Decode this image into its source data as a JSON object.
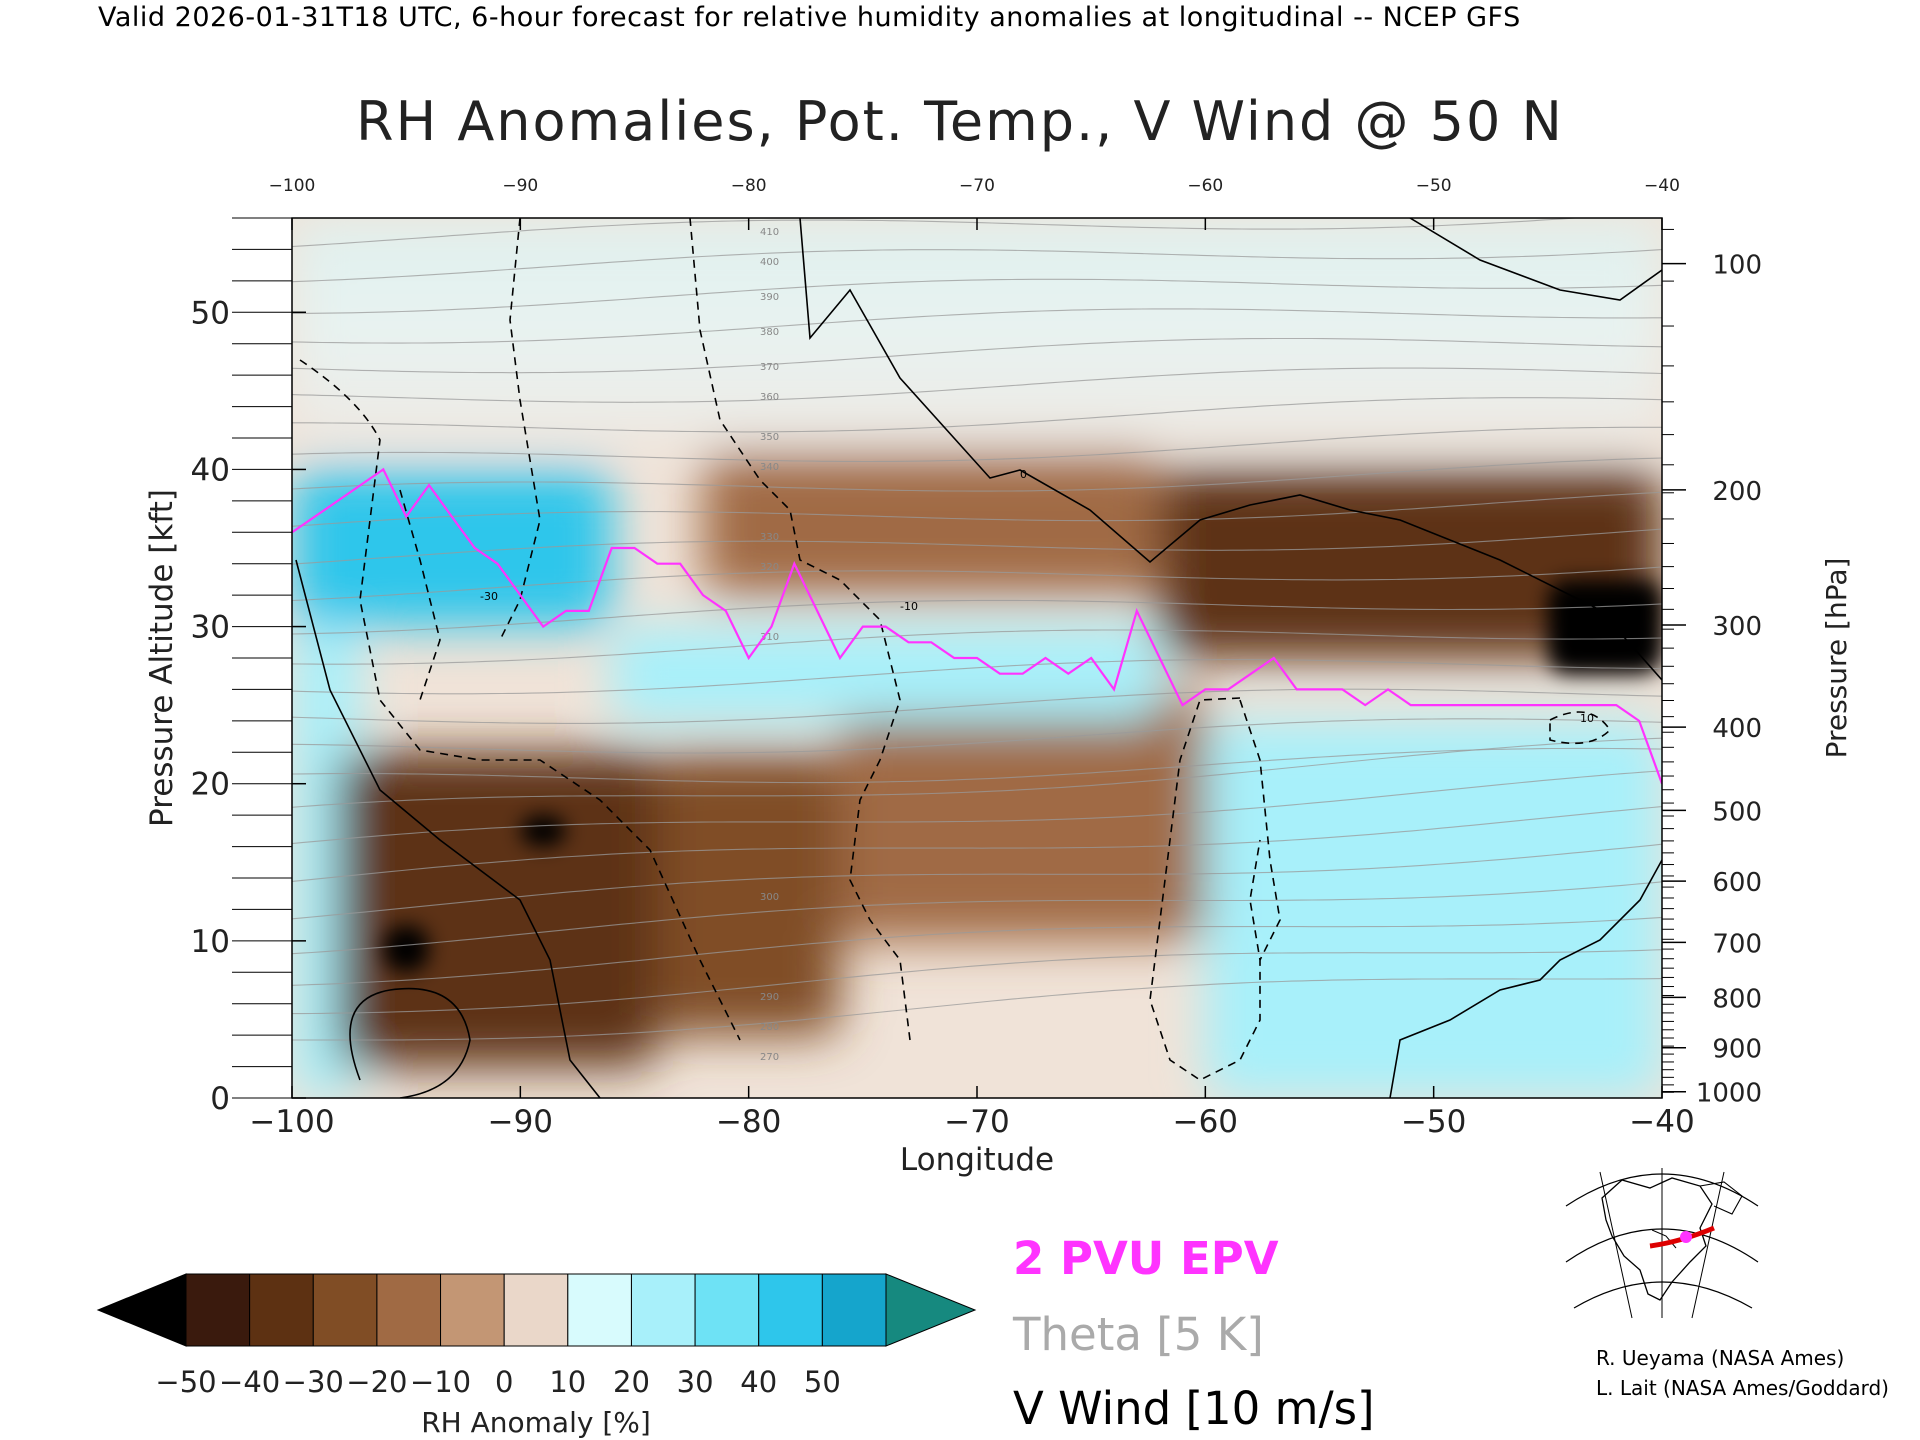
{
  "header": "Valid 2026-01-31T18 UTC, 6-hour forecast for relative humidity anomalies at longitudinal -- NCEP GFS",
  "chart_data": {
    "type": "heatmap",
    "title": "RH Anomalies, Pot. Temp., V Wind @ 50 N",
    "xlabel": "Longitude",
    "ylabel_left": "Pressure Altitude [kft]",
    "ylabel_right": "Pressure [hPa]",
    "xlim": [
      -100,
      -40
    ],
    "ylim": [
      0,
      56
    ],
    "x_ticks": [
      -100,
      -90,
      -80,
      -70,
      -60,
      -50,
      -40
    ],
    "x_tick_labels": [
      "−100",
      "−90",
      "−80",
      "−70",
      "−60",
      "−50",
      "−40"
    ],
    "x_top_tick_labels": [
      "−100",
      "−90",
      "−80",
      "−70",
      "−60",
      "−50",
      "−40"
    ],
    "y_ticks": [
      0,
      10,
      20,
      30,
      40,
      50
    ],
    "y_tick_labels": [
      "0",
      "10",
      "20",
      "30",
      "40",
      "50"
    ],
    "pressure_ticks": [
      {
        "kft": 53.1,
        "label": "100"
      },
      {
        "kft": 38.7,
        "label": "200"
      },
      {
        "kft": 30.1,
        "label": "300"
      },
      {
        "kft": 23.6,
        "label": "400"
      },
      {
        "kft": 18.3,
        "label": "500"
      },
      {
        "kft": 13.8,
        "label": "600"
      },
      {
        "kft": 9.9,
        "label": "700"
      },
      {
        "kft": 6.4,
        "label": "800"
      },
      {
        "kft": 3.2,
        "label": "900"
      },
      {
        "kft": 0.4,
        "label": "1000"
      }
    ],
    "colorbar": {
      "label": "RH Anomaly [%]",
      "levels": [
        -50,
        -40,
        -30,
        -20,
        -10,
        0,
        10,
        20,
        30,
        40,
        50
      ],
      "tick_labels": [
        "−50",
        "−40",
        "−30",
        "−20",
        "−10",
        "0",
        "10",
        "20",
        "30",
        "40",
        "50"
      ],
      "colors": [
        "#3a1a0d",
        "#5d3112",
        "#804d25",
        "#a06a44",
        "#c39674",
        "#ead7c9",
        "#d8fbfd",
        "#a8f0fa",
        "#6ee2f5",
        "#2ec6eb",
        "#15a5cc"
      ],
      "under_color": "#000000",
      "over_color": "#16897f"
    },
    "legend": [
      {
        "label": "2 PVU EPV",
        "color": "#ff33ff"
      },
      {
        "label": "Theta [5 K]",
        "color": "#aaaaaa"
      },
      {
        "label": "V Wind [10 m/s]",
        "color": "#000000"
      }
    ],
    "rh_anomaly_regions": [
      {
        "x": [
          -100,
          -86
        ],
        "y": [
          30,
          40
        ],
        "value": 45
      },
      {
        "x": [
          -100,
          -97
        ],
        "y": [
          0,
          30
        ],
        "value": 25
      },
      {
        "x": [
          -98,
          -84
        ],
        "y": [
          2,
          22
        ],
        "value": -35
      },
      {
        "x": [
          -96,
          -94
        ],
        "y": [
          8,
          11
        ],
        "value": -55
      },
      {
        "x": [
          -90,
          -88
        ],
        "y": [
          16,
          18
        ],
        "value": -55
      },
      {
        "x": [
          -84,
          -76
        ],
        "y": [
          4,
          22
        ],
        "value": -30
      },
      {
        "x": [
          -82,
          -62
        ],
        "y": [
          32,
          41
        ],
        "value": -20
      },
      {
        "x": [
          -62,
          -40
        ],
        "y": [
          28,
          40
        ],
        "value": -35
      },
      {
        "x": [
          -45,
          -40
        ],
        "y": [
          27,
          33
        ],
        "value": -55
      },
      {
        "x": [
          -60,
          -40
        ],
        "y": [
          0,
          24
        ],
        "value": 25
      },
      {
        "x": [
          -76,
          -60
        ],
        "y": [
          10,
          26
        ],
        "value": -15
      },
      {
        "x": [
          -86,
          -62
        ],
        "y": [
          24,
          30
        ],
        "value": 20
      },
      {
        "x": [
          -100,
          -40
        ],
        "y": [
          42,
          56
        ],
        "value": -5
      }
    ],
    "epv_2pvu": {
      "x": [
        -100,
        -98,
        -96,
        -95,
        -94,
        -93,
        -92,
        -91,
        -90,
        -89,
        -88,
        -87,
        -86,
        -85,
        -84,
        -83,
        -82,
        -81,
        -80,
        -79,
        -78,
        -77,
        -76,
        -75,
        -74,
        -73,
        -72,
        -71,
        -70,
        -69,
        -68,
        -67,
        -66,
        -65,
        -64,
        -63,
        -62,
        -61,
        -60,
        -59,
        -58,
        -57,
        -56,
        -55,
        -54,
        -53,
        -52,
        -51,
        -50,
        -48,
        -46,
        -44,
        -42,
        -41,
        -40
      ],
      "y": [
        36,
        38,
        40,
        37,
        39,
        37,
        35,
        34,
        32,
        30,
        31,
        31,
        35,
        35,
        34,
        34,
        32,
        31,
        28,
        30,
        34,
        31,
        28,
        30,
        30,
        29,
        29,
        28,
        28,
        27,
        27,
        28,
        27,
        28,
        26,
        31,
        28,
        25,
        26,
        26,
        27,
        28,
        26,
        26,
        26,
        25,
        26,
        25,
        25,
        25,
        25,
        25,
        25,
        24,
        20
      ]
    },
    "theta_contour_labels": [
      "270",
      "280",
      "290",
      "300",
      "310",
      "320",
      "330",
      "340",
      "350",
      "360",
      "370",
      "380",
      "390",
      "400",
      "410"
    ],
    "v_wind_contour_labels": [
      "-30",
      "-10",
      "0",
      "10"
    ]
  },
  "attribution": {
    "line1": "R. Ueyama (NASA Ames)",
    "line2": "L. Lait (NASA Ames/Goddard)"
  }
}
